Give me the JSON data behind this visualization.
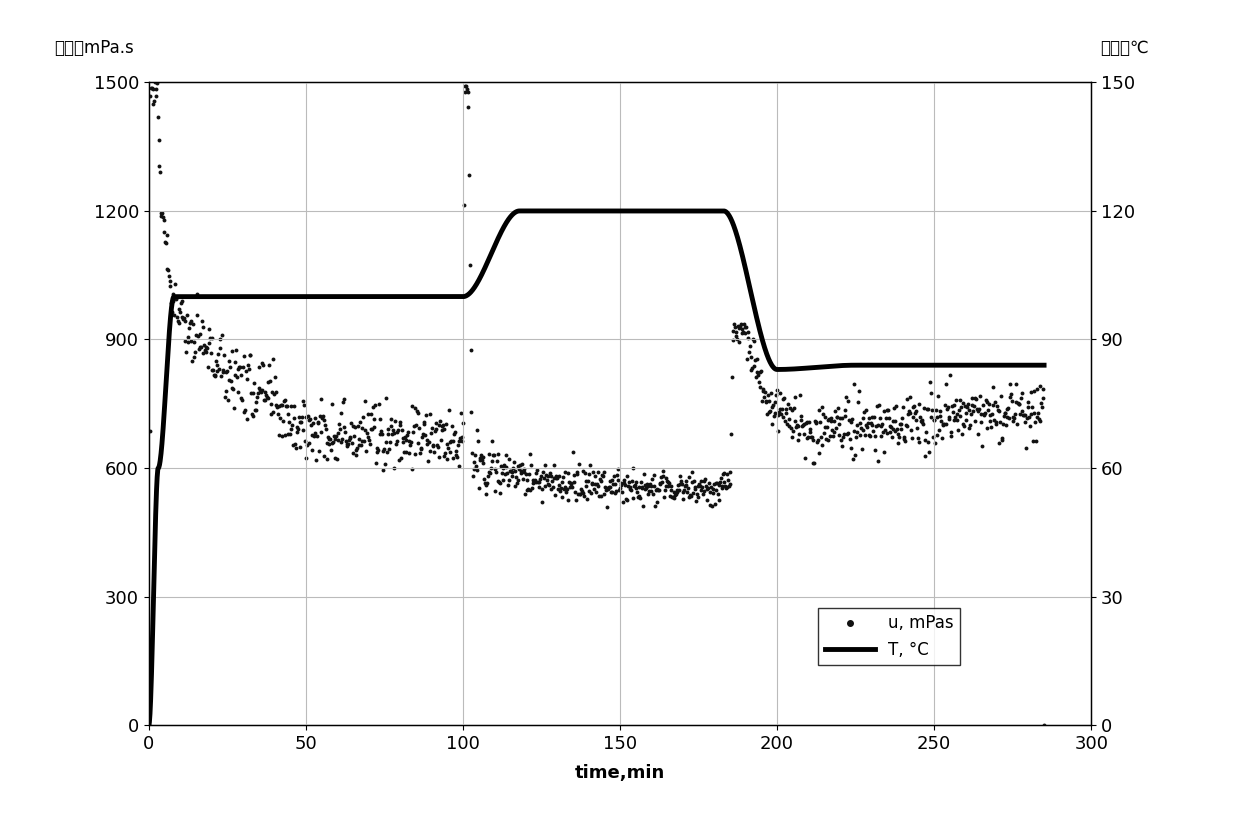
{
  "title": "",
  "xlabel": "time,min",
  "ylabel_left": "粘度，mPa.s",
  "ylabel_right": "温度，℃",
  "xlim": [
    0,
    300
  ],
  "ylim_left": [
    0,
    1500
  ],
  "ylim_right": [
    0,
    150
  ],
  "xticks": [
    0,
    50,
    100,
    150,
    200,
    250,
    300
  ],
  "yticks_left": [
    0,
    300,
    600,
    900,
    1200,
    1500
  ],
  "yticks_right": [
    0,
    30,
    60,
    90,
    120,
    150
  ],
  "legend_labels": [
    "u, mPas",
    "T, °C"
  ],
  "background_color": "#ffffff",
  "grid_color": "#bbbbbb",
  "line_color": "#000000",
  "dot_color": "#111111"
}
